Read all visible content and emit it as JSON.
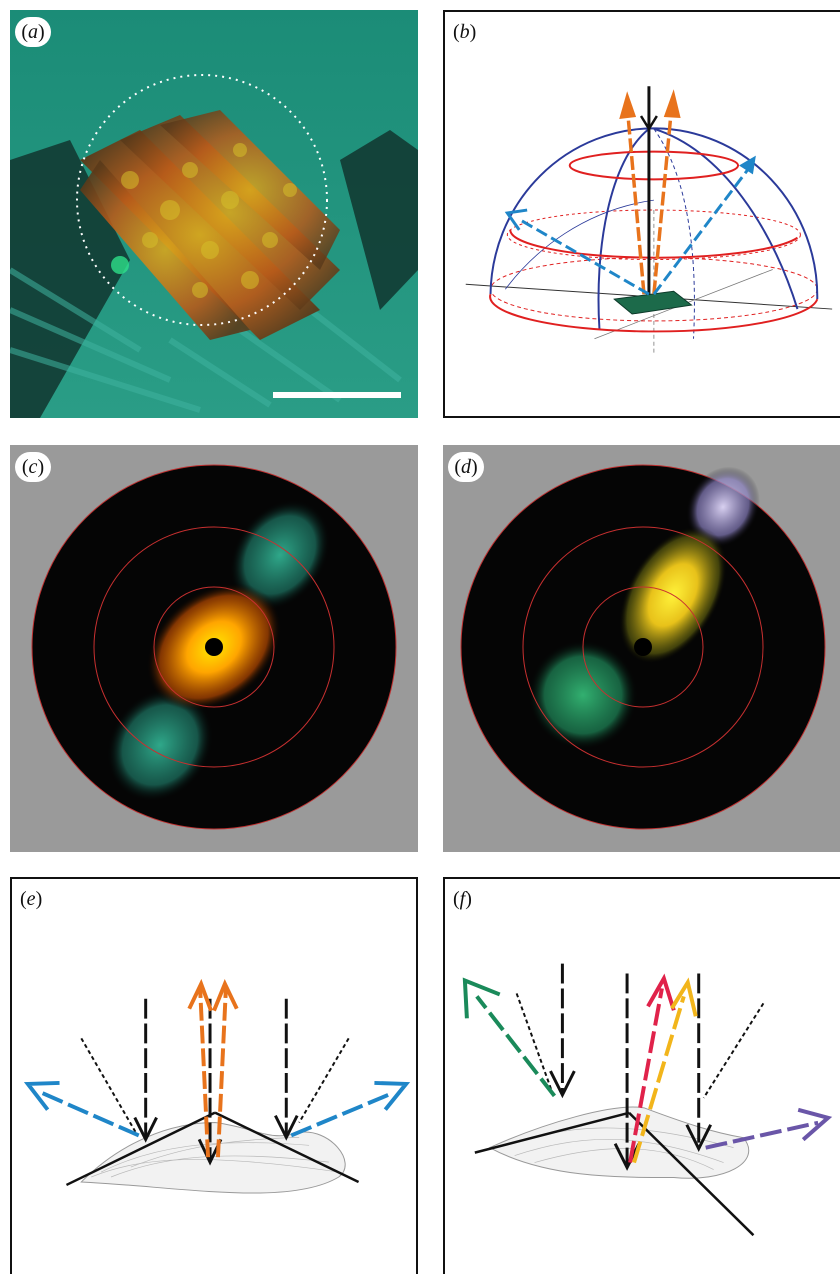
{
  "panels": {
    "a": {
      "label": "(a)",
      "letter": "a"
    },
    "b": {
      "label": "(b)",
      "letter": "b"
    },
    "c": {
      "label": "(c)",
      "letter": "c"
    },
    "d": {
      "label": "(d)",
      "letter": "d"
    },
    "e": {
      "label": "(e)",
      "letter": "e"
    },
    "f": {
      "label": "(f)",
      "letter": "f"
    }
  },
  "colors": {
    "incident": "#111111",
    "specular_orange": "#e8731c",
    "diffraction_blue": "#1f86c8",
    "green": "#1a8a5a",
    "red": "#e0224a",
    "yellow": "#f2b51b",
    "purple": "#6a56a8",
    "hemisphere_blue": "#2b3a9a",
    "hemisphere_red": "#e02020",
    "micrograph_bg": "#1f8f78",
    "scatter_bg": "#9a9a9a"
  }
}
